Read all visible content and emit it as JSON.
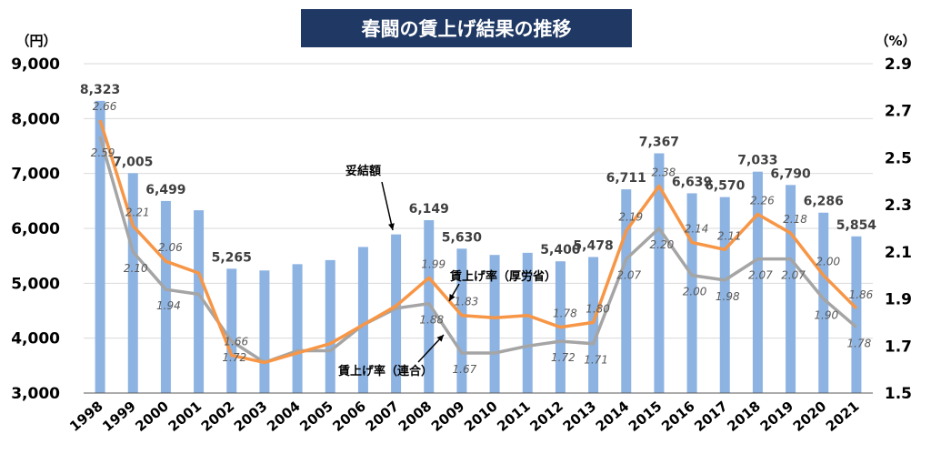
{
  "chart_data": {
    "type": "bar",
    "title": "春闘の賃上げ結果の推移",
    "y_left_unit": "（円）",
    "y_right_unit": "（%）",
    "ylim_left": [
      3000,
      9000
    ],
    "ylim_right": [
      1.5,
      2.9
    ],
    "yticks_left": [
      "3,000",
      "4,000",
      "5,000",
      "6,000",
      "7,000",
      "8,000",
      "9,000"
    ],
    "yticks_right": [
      "1.5",
      "1.7",
      "1.9",
      "2.1",
      "2.3",
      "2.5",
      "2.7",
      "2.9"
    ],
    "categories": [
      "1998",
      "1999",
      "2000",
      "2001",
      "2002",
      "2003",
      "2004",
      "2005",
      "2006",
      "2007",
      "2008",
      "2009",
      "2010",
      "2011",
      "2012",
      "2013",
      "2014",
      "2015",
      "2016",
      "2017",
      "2018",
      "2019",
      "2020",
      "2021"
    ],
    "series": [
      {
        "name": "妥結額",
        "kind": "bar",
        "axis": "left",
        "color": "#8db3e2",
        "values": [
          8323,
          7005,
          6499,
          6330,
          5265,
          5233,
          5348,
          5422,
          5661,
          5890,
          6149,
          5630,
          5516,
          5555,
          5400,
          5478,
          6711,
          7367,
          6639,
          6570,
          7033,
          6790,
          6286,
          5854
        ],
        "labels": [
          "8,323",
          "7,005",
          "6,499",
          "",
          "5,265",
          "",
          "",
          "",
          "",
          "",
          "6,149",
          "5,630",
          "",
          "",
          "5,400",
          "5,478",
          "6,711",
          "7,367",
          "6,639",
          "6,570",
          "7,033",
          "6,790",
          "6,286",
          "5,854"
        ]
      },
      {
        "name": "賃上げ率（厚労省）",
        "kind": "line",
        "axis": "right",
        "color": "#f79646",
        "values": [
          2.66,
          2.21,
          2.06,
          2.01,
          1.66,
          1.63,
          1.67,
          1.71,
          1.79,
          1.87,
          1.99,
          1.83,
          1.82,
          1.83,
          1.78,
          1.8,
          2.19,
          2.38,
          2.14,
          2.11,
          2.26,
          2.18,
          2.0,
          1.86
        ],
        "labels": [
          "2.66",
          "2.21",
          "2.06",
          "",
          "1.66",
          "",
          "",
          "",
          "",
          "",
          "1.99",
          "1.83",
          "",
          "",
          "1.78",
          "1.80",
          "2.19",
          "2.38",
          "2.14",
          "2.11",
          "2.26",
          "2.18",
          "2.00",
          "1.86"
        ]
      },
      {
        "name": "賃上げ率（連合）",
        "kind": "line",
        "axis": "right",
        "color": "#a5a5a5",
        "values": [
          2.59,
          2.1,
          1.94,
          1.92,
          1.72,
          1.63,
          1.68,
          1.68,
          1.79,
          1.86,
          1.88,
          1.67,
          1.67,
          1.7,
          1.72,
          1.71,
          2.07,
          2.2,
          2.0,
          1.98,
          2.07,
          2.07,
          1.9,
          1.78
        ],
        "labels": [
          "2.59",
          "2.10",
          "1.94",
          "",
          "1.72",
          "",
          "",
          "",
          "",
          "",
          "1.88",
          "1.67",
          "",
          "",
          "1.72",
          "1.71",
          "2.07",
          "2.20",
          "2.00",
          "1.98",
          "2.07",
          "2.07",
          "1.90",
          "1.78"
        ]
      }
    ],
    "annotations": [
      "妥結額",
      "賃上げ率（厚労省）",
      "賃上げ率（連合）"
    ],
    "grid": true,
    "legend": "none"
  }
}
